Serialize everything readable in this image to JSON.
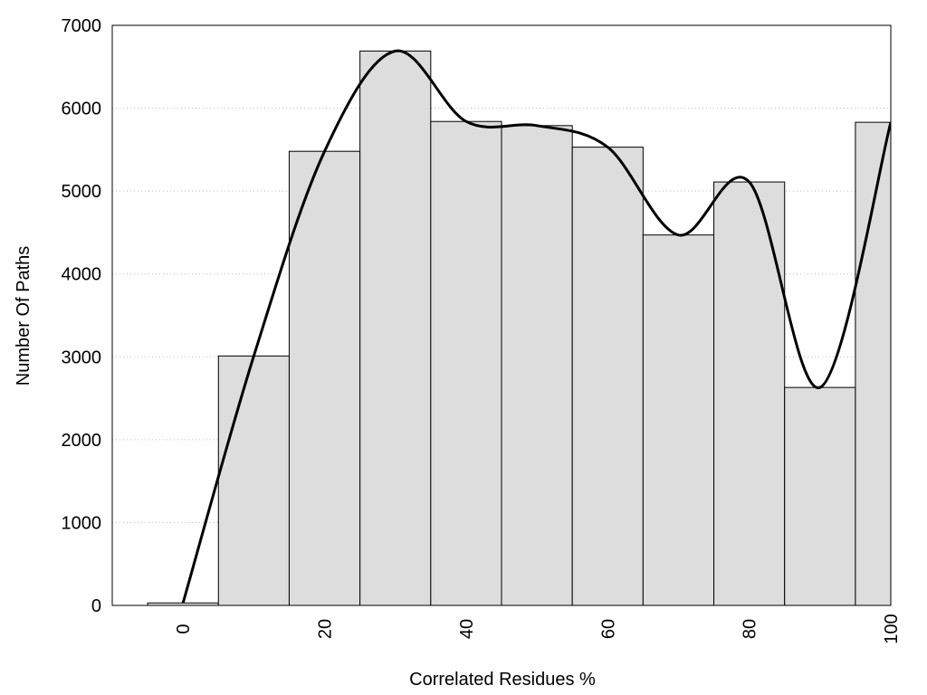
{
  "chart_data": {
    "type": "histogram",
    "xlabel": "Correlated Residues %",
    "ylabel": "Number Of Paths",
    "bins": [
      -5,
      5,
      15,
      25,
      35,
      45,
      55,
      65,
      75,
      85,
      95,
      100
    ],
    "values": [
      30,
      3010,
      5480,
      6690,
      5840,
      5790,
      5530,
      4470,
      5110,
      2630,
      5830
    ],
    "color": "#dddddd",
    "curve": {
      "x": [
        0,
        10,
        20,
        30,
        40,
        50,
        60,
        70,
        80,
        90,
        100
      ],
      "smooth": true,
      "color": "#000000"
    },
    "xlim": [
      -10,
      100
    ],
    "xticks": [
      0,
      20,
      40,
      60,
      80,
      100
    ],
    "ylim": [
      0,
      7000
    ],
    "yticks": [
      0,
      1000,
      2000,
      3000,
      4000,
      5000,
      6000,
      7000
    ],
    "grid": true
  }
}
